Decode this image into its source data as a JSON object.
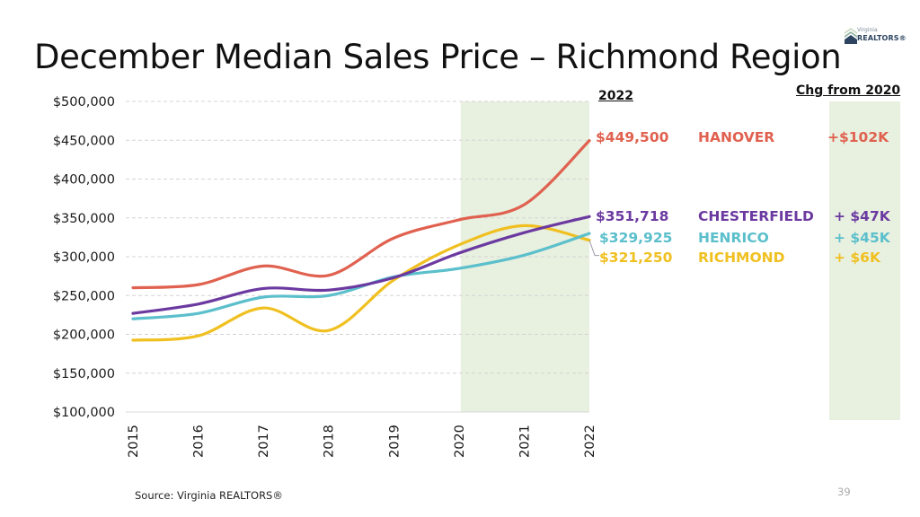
{
  "slide": {
    "title": "December Median Sales Price – Richmond Region",
    "source": "Source: Virginia REALTORS®",
    "page_number": "39",
    "logo": {
      "line1": "Virginia",
      "line2": "REALTORS®",
      "icon": "house-roof-logo-icon"
    }
  },
  "table": {
    "header_value": "2022",
    "header_change": "Chg from 2020",
    "rows": [
      {
        "value": "$449,500",
        "name": "HANOVER",
        "change": "+$102K",
        "color": "#e0614f"
      },
      {
        "value": "$351,718",
        "name": "CHESTERFIELD",
        "change": "+ $47K",
        "color": "#6b3aa0"
      },
      {
        "value": "$329,925",
        "name": "HENRICO",
        "change": "+ $45K",
        "color": "#5bbfcc"
      },
      {
        "value": "$321,250",
        "name": "RICHMOND",
        "change": "+ $6K",
        "color": "#f0c020"
      }
    ]
  },
  "chart_data": {
    "type": "line",
    "title": "December Median Sales Price – Richmond Region",
    "xlabel": "",
    "ylabel": "",
    "x": [
      "2015",
      "2016",
      "2017",
      "2018",
      "2019",
      "2020",
      "2021",
      "2022"
    ],
    "ylim": [
      100000,
      500000
    ],
    "yticks": [
      100000,
      150000,
      200000,
      250000,
      300000,
      350000,
      400000,
      450000,
      500000
    ],
    "ytick_labels": [
      "$100,000",
      "$150,000",
      "$200,000",
      "$250,000",
      "$300,000",
      "$350,000",
      "$400,000",
      "$450,000",
      "$500,000"
    ],
    "grid": "horizontal-dashed",
    "highlight_range": [
      "2020",
      "2022"
    ],
    "highlight_color": "#e8f0e0",
    "series": [
      {
        "name": "HANOVER",
        "color": "#e0614f",
        "values": [
          260000,
          264000,
          288000,
          276000,
          324000,
          347500,
          367000,
          449500
        ]
      },
      {
        "name": "CHESTERFIELD",
        "color": "#6b3aa0",
        "values": [
          227000,
          239000,
          259000,
          257000,
          273000,
          304700,
          331000,
          351718
        ]
      },
      {
        "name": "HENRICO",
        "color": "#5bbfcc",
        "values": [
          220000,
          227000,
          248000,
          250000,
          274000,
          284900,
          302000,
          329925
        ]
      },
      {
        "name": "RICHMOND",
        "color": "#f0c020",
        "values": [
          192500,
          198000,
          234000,
          205000,
          270000,
          315250,
          340000,
          321250
        ]
      }
    ]
  }
}
